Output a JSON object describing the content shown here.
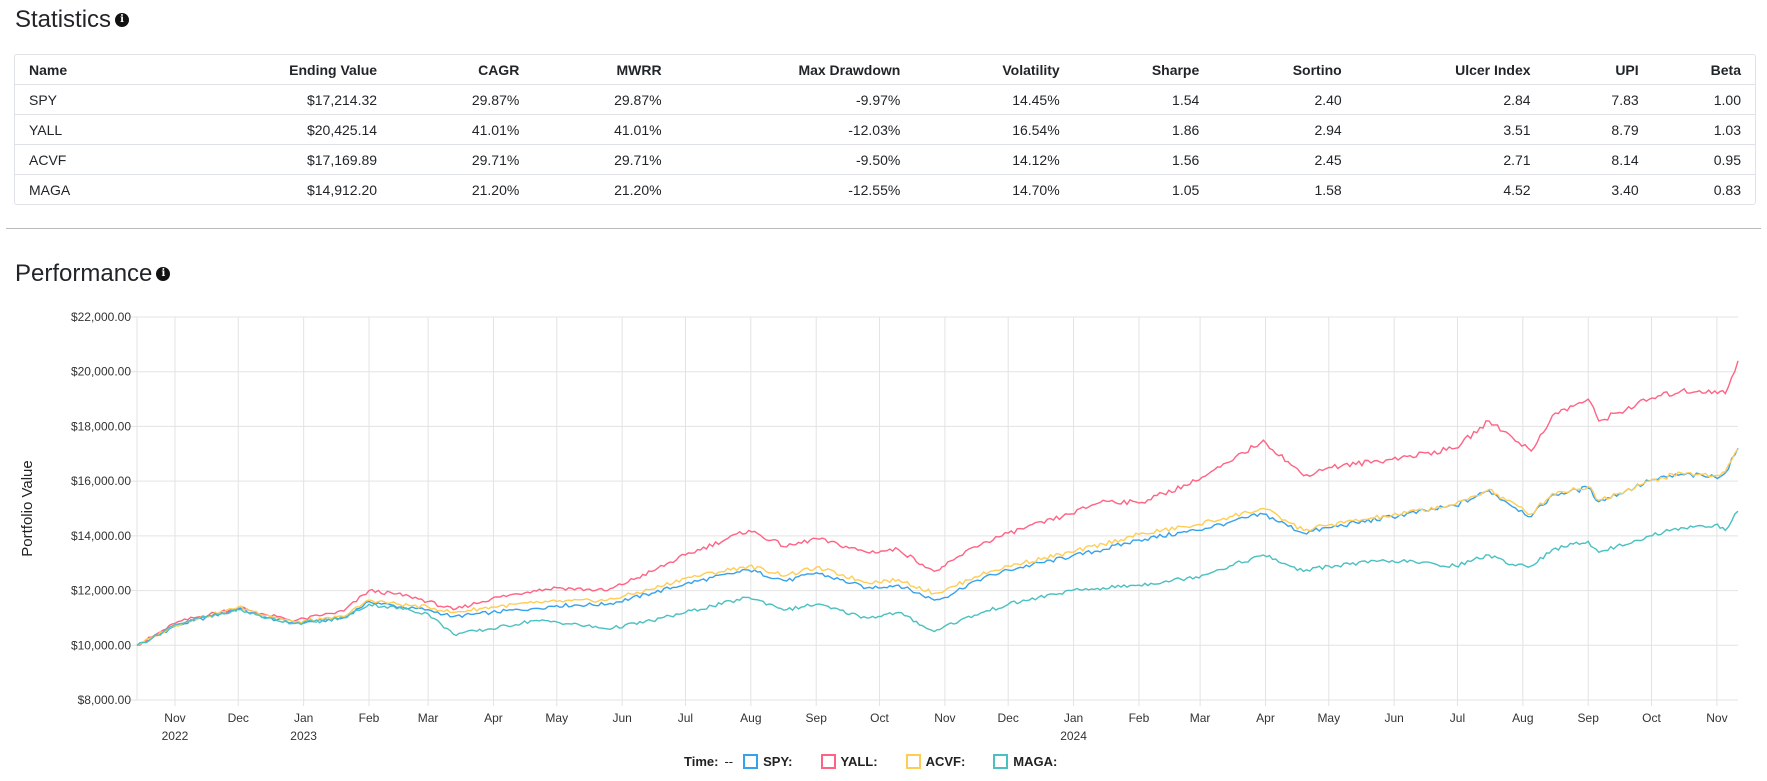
{
  "statistics": {
    "title": "Statistics",
    "columns": [
      "Name",
      "Ending Value",
      "CAGR",
      "MWRR",
      "Max Drawdown",
      "Volatility",
      "Sharpe",
      "Sortino",
      "Ulcer Index",
      "UPI",
      "Beta"
    ],
    "rows": [
      [
        "SPY",
        "$17,214.32",
        "29.87%",
        "29.87%",
        "-9.97%",
        "14.45%",
        "1.54",
        "2.40",
        "2.84",
        "7.83",
        "1.00"
      ],
      [
        "YALL",
        "$20,425.14",
        "41.01%",
        "41.01%",
        "-12.03%",
        "16.54%",
        "1.86",
        "2.94",
        "3.51",
        "8.79",
        "1.03"
      ],
      [
        "ACVF",
        "$17,169.89",
        "29.71%",
        "29.71%",
        "-9.50%",
        "14.12%",
        "1.56",
        "2.45",
        "2.71",
        "8.14",
        "0.95"
      ],
      [
        "MAGA",
        "$14,912.20",
        "21.20%",
        "21.20%",
        "-12.55%",
        "14.70%",
        "1.05",
        "1.58",
        "4.52",
        "3.40",
        "0.83"
      ]
    ]
  },
  "performance": {
    "title": "Performance",
    "legend": {
      "time_label": "Time:",
      "time_value": "--"
    }
  },
  "chart_data": {
    "type": "line",
    "ylabel": "Portfolio Value",
    "xlabel": "",
    "ylim": [
      8000,
      22000
    ],
    "y_ticks": [
      "$8,000.00",
      "$10,000.00",
      "$12,000.00",
      "$14,000.00",
      "$16,000.00",
      "$18,000.00",
      "$20,000.00",
      "$22,000.00"
    ],
    "y_tick_values": [
      8000,
      10000,
      12000,
      14000,
      16000,
      18000,
      20000,
      22000
    ],
    "x_start": "2022-10-14",
    "x_end": "2024-11-11",
    "x_ticks": [
      {
        "date": "2022-11-01",
        "label": "Nov",
        "year": "2022"
      },
      {
        "date": "2022-12-01",
        "label": "Dec",
        "year": ""
      },
      {
        "date": "2023-01-01",
        "label": "Jan",
        "year": "2023"
      },
      {
        "date": "2023-02-01",
        "label": "Feb",
        "year": ""
      },
      {
        "date": "2023-03-01",
        "label": "Mar",
        "year": ""
      },
      {
        "date": "2023-04-01",
        "label": "Apr",
        "year": ""
      },
      {
        "date": "2023-05-01",
        "label": "May",
        "year": ""
      },
      {
        "date": "2023-06-01",
        "label": "Jun",
        "year": ""
      },
      {
        "date": "2023-07-01",
        "label": "Jul",
        "year": ""
      },
      {
        "date": "2023-08-01",
        "label": "Aug",
        "year": ""
      },
      {
        "date": "2023-09-01",
        "label": "Sep",
        "year": ""
      },
      {
        "date": "2023-10-01",
        "label": "Oct",
        "year": ""
      },
      {
        "date": "2023-11-01",
        "label": "Nov",
        "year": ""
      },
      {
        "date": "2023-12-01",
        "label": "Dec",
        "year": ""
      },
      {
        "date": "2024-01-01",
        "label": "Jan",
        "year": "2024"
      },
      {
        "date": "2024-02-01",
        "label": "Feb",
        "year": ""
      },
      {
        "date": "2024-03-01",
        "label": "Mar",
        "year": ""
      },
      {
        "date": "2024-04-01",
        "label": "Apr",
        "year": ""
      },
      {
        "date": "2024-05-01",
        "label": "May",
        "year": ""
      },
      {
        "date": "2024-06-01",
        "label": "Jun",
        "year": ""
      },
      {
        "date": "2024-07-01",
        "label": "Jul",
        "year": ""
      },
      {
        "date": "2024-08-01",
        "label": "Aug",
        "year": ""
      },
      {
        "date": "2024-09-01",
        "label": "Sep",
        "year": ""
      },
      {
        "date": "2024-10-01",
        "label": "Oct",
        "year": ""
      },
      {
        "date": "2024-11-01",
        "label": "Nov",
        "year": ""
      }
    ],
    "grid": true,
    "legend_position": "bottom",
    "series": [
      {
        "name": "SPY:",
        "color": "#36a2eb",
        "points": [
          [
            "2022-10-14",
            10000
          ],
          [
            "2022-10-21",
            10250
          ],
          [
            "2022-11-01",
            10700
          ],
          [
            "2022-11-10",
            10900
          ],
          [
            "2022-11-30",
            11300
          ],
          [
            "2022-12-01",
            11350
          ],
          [
            "2022-12-15",
            11000
          ],
          [
            "2022-12-28",
            10800
          ],
          [
            "2023-01-10",
            10900
          ],
          [
            "2023-01-20",
            11000
          ],
          [
            "2023-02-01",
            11600
          ],
          [
            "2023-02-20",
            11350
          ],
          [
            "2023-03-01",
            11300
          ],
          [
            "2023-03-13",
            11050
          ],
          [
            "2023-03-31",
            11200
          ],
          [
            "2023-04-20",
            11350
          ],
          [
            "2023-05-01",
            11450
          ],
          [
            "2023-05-25",
            11500
          ],
          [
            "2023-06-15",
            11900
          ],
          [
            "2023-07-01",
            12250
          ],
          [
            "2023-07-31",
            12750
          ],
          [
            "2023-08-18",
            12350
          ],
          [
            "2023-09-01",
            12650
          ],
          [
            "2023-09-25",
            12100
          ],
          [
            "2023-10-10",
            12200
          ],
          [
            "2023-10-27",
            11650
          ],
          [
            "2023-11-01",
            11750
          ],
          [
            "2023-11-15",
            12350
          ],
          [
            "2023-12-01",
            12750
          ],
          [
            "2023-12-31",
            13250
          ],
          [
            "2024-01-15",
            13500
          ],
          [
            "2024-02-01",
            13850
          ],
          [
            "2024-02-28",
            14200
          ],
          [
            "2024-03-15",
            14500
          ],
          [
            "2024-03-31",
            14800
          ],
          [
            "2024-04-19",
            14100
          ],
          [
            "2024-05-01",
            14300
          ],
          [
            "2024-05-31",
            14700
          ],
          [
            "2024-06-30",
            15100
          ],
          [
            "2024-07-16",
            15650
          ],
          [
            "2024-07-24",
            15250
          ],
          [
            "2024-08-05",
            14700
          ],
          [
            "2024-08-15",
            15500
          ],
          [
            "2024-09-01",
            15750
          ],
          [
            "2024-09-06",
            15250
          ],
          [
            "2024-09-30",
            16000
          ],
          [
            "2024-10-15",
            16250
          ],
          [
            "2024-10-31",
            16150
          ],
          [
            "2024-11-05",
            16300
          ],
          [
            "2024-11-11",
            17200
          ]
        ]
      },
      {
        "name": "YALL:",
        "color": "#ff6384",
        "points": [
          [
            "2022-10-14",
            10000
          ],
          [
            "2022-10-21",
            10300
          ],
          [
            "2022-11-01",
            10800
          ],
          [
            "2022-11-10",
            11000
          ],
          [
            "2022-11-30",
            11350
          ],
          [
            "2022-12-01",
            11400
          ],
          [
            "2022-12-15",
            11100
          ],
          [
            "2022-12-28",
            10900
          ],
          [
            "2023-01-10",
            11100
          ],
          [
            "2023-01-20",
            11250
          ],
          [
            "2023-02-01",
            12000
          ],
          [
            "2023-02-20",
            11800
          ],
          [
            "2023-03-01",
            11600
          ],
          [
            "2023-03-13",
            11300
          ],
          [
            "2023-03-31",
            11700
          ],
          [
            "2023-04-20",
            12000
          ],
          [
            "2023-05-01",
            12100
          ],
          [
            "2023-05-25",
            12000
          ],
          [
            "2023-06-15",
            12700
          ],
          [
            "2023-07-01",
            13300
          ],
          [
            "2023-07-31",
            14200
          ],
          [
            "2023-08-18",
            13600
          ],
          [
            "2023-09-01",
            13900
          ],
          [
            "2023-09-25",
            13400
          ],
          [
            "2023-10-10",
            13500
          ],
          [
            "2023-10-27",
            12700
          ],
          [
            "2023-11-01",
            12900
          ],
          [
            "2023-11-15",
            13600
          ],
          [
            "2023-12-01",
            14100
          ],
          [
            "2023-12-31",
            14800
          ],
          [
            "2024-01-15",
            15300
          ],
          [
            "2024-02-01",
            15200
          ],
          [
            "2024-02-28",
            16000
          ],
          [
            "2024-03-15",
            16700
          ],
          [
            "2024-03-31",
            17500
          ],
          [
            "2024-04-19",
            16200
          ],
          [
            "2024-05-01",
            16500
          ],
          [
            "2024-05-31",
            16800
          ],
          [
            "2024-06-30",
            17200
          ],
          [
            "2024-07-16",
            18200
          ],
          [
            "2024-07-24",
            17800
          ],
          [
            "2024-08-05",
            17100
          ],
          [
            "2024-08-15",
            18400
          ],
          [
            "2024-09-01",
            19000
          ],
          [
            "2024-09-06",
            18200
          ],
          [
            "2024-09-30",
            19000
          ],
          [
            "2024-10-15",
            19300
          ],
          [
            "2024-10-31",
            19300
          ],
          [
            "2024-11-05",
            19200
          ],
          [
            "2024-11-11",
            20400
          ]
        ]
      },
      {
        "name": "ACVF:",
        "color": "#ffcd56",
        "points": [
          [
            "2022-10-14",
            10000
          ],
          [
            "2022-10-21",
            10280
          ],
          [
            "2022-11-01",
            10720
          ],
          [
            "2022-11-10",
            10950
          ],
          [
            "2022-11-30",
            11350
          ],
          [
            "2022-12-01",
            11400
          ],
          [
            "2022-12-15",
            11100
          ],
          [
            "2022-12-28",
            10850
          ],
          [
            "2023-01-10",
            10950
          ],
          [
            "2023-01-20",
            11050
          ],
          [
            "2023-02-01",
            11650
          ],
          [
            "2023-02-20",
            11450
          ],
          [
            "2023-03-01",
            11400
          ],
          [
            "2023-03-13",
            11200
          ],
          [
            "2023-03-31",
            11400
          ],
          [
            "2023-04-20",
            11550
          ],
          [
            "2023-05-01",
            11600
          ],
          [
            "2023-05-25",
            11650
          ],
          [
            "2023-06-15",
            12050
          ],
          [
            "2023-07-01",
            12450
          ],
          [
            "2023-07-31",
            12900
          ],
          [
            "2023-08-18",
            12550
          ],
          [
            "2023-09-01",
            12850
          ],
          [
            "2023-09-25",
            12300
          ],
          [
            "2023-10-10",
            12400
          ],
          [
            "2023-10-27",
            11900
          ],
          [
            "2023-11-01",
            12000
          ],
          [
            "2023-11-15",
            12500
          ],
          [
            "2023-12-01",
            12900
          ],
          [
            "2023-12-31",
            13400
          ],
          [
            "2024-01-15",
            13700
          ],
          [
            "2024-02-01",
            14050
          ],
          [
            "2024-02-28",
            14400
          ],
          [
            "2024-03-15",
            14700
          ],
          [
            "2024-03-31",
            15000
          ],
          [
            "2024-04-19",
            14200
          ],
          [
            "2024-05-01",
            14400
          ],
          [
            "2024-05-31",
            14750
          ],
          [
            "2024-06-30",
            15150
          ],
          [
            "2024-07-16",
            15700
          ],
          [
            "2024-07-24",
            15300
          ],
          [
            "2024-08-05",
            14800
          ],
          [
            "2024-08-15",
            15550
          ],
          [
            "2024-09-01",
            15800
          ],
          [
            "2024-09-06",
            15300
          ],
          [
            "2024-09-30",
            16000
          ],
          [
            "2024-10-15",
            16300
          ],
          [
            "2024-10-31",
            16200
          ],
          [
            "2024-11-05",
            16350
          ],
          [
            "2024-11-11",
            17170
          ]
        ]
      },
      {
        "name": "MAGA:",
        "color": "#4bc0c0",
        "points": [
          [
            "2022-10-14",
            10000
          ],
          [
            "2022-10-21",
            10250
          ],
          [
            "2022-11-01",
            10750
          ],
          [
            "2022-11-10",
            10950
          ],
          [
            "2022-11-30",
            11250
          ],
          [
            "2022-12-01",
            11300
          ],
          [
            "2022-12-15",
            11000
          ],
          [
            "2022-12-28",
            10800
          ],
          [
            "2023-01-10",
            10900
          ],
          [
            "2023-01-20",
            11000
          ],
          [
            "2023-02-01",
            11500
          ],
          [
            "2023-02-20",
            11300
          ],
          [
            "2023-03-01",
            11150
          ],
          [
            "2023-03-13",
            10400
          ],
          [
            "2023-03-31",
            10600
          ],
          [
            "2023-04-20",
            10900
          ],
          [
            "2023-05-01",
            10850
          ],
          [
            "2023-05-25",
            10600
          ],
          [
            "2023-06-15",
            10900
          ],
          [
            "2023-07-01",
            11200
          ],
          [
            "2023-07-31",
            11750
          ],
          [
            "2023-08-18",
            11300
          ],
          [
            "2023-09-01",
            11500
          ],
          [
            "2023-09-25",
            11000
          ],
          [
            "2023-10-10",
            11200
          ],
          [
            "2023-10-27",
            10500
          ],
          [
            "2023-11-01",
            10700
          ],
          [
            "2023-11-15",
            11100
          ],
          [
            "2023-12-01",
            11500
          ],
          [
            "2023-12-31",
            12000
          ],
          [
            "2024-01-15",
            12100
          ],
          [
            "2024-02-01",
            12200
          ],
          [
            "2024-02-28",
            12500
          ],
          [
            "2024-03-15",
            12900
          ],
          [
            "2024-03-31",
            13300
          ],
          [
            "2024-04-19",
            12700
          ],
          [
            "2024-05-01",
            12900
          ],
          [
            "2024-05-31",
            13100
          ],
          [
            "2024-06-30",
            12900
          ],
          [
            "2024-07-16",
            13300
          ],
          [
            "2024-07-24",
            13000
          ],
          [
            "2024-08-05",
            12900
          ],
          [
            "2024-08-15",
            13500
          ],
          [
            "2024-09-01",
            13800
          ],
          [
            "2024-09-06",
            13400
          ],
          [
            "2024-09-30",
            14000
          ],
          [
            "2024-10-15",
            14300
          ],
          [
            "2024-10-31",
            14400
          ],
          [
            "2024-11-05",
            14200
          ],
          [
            "2024-11-11",
            14900
          ]
        ]
      }
    ]
  }
}
